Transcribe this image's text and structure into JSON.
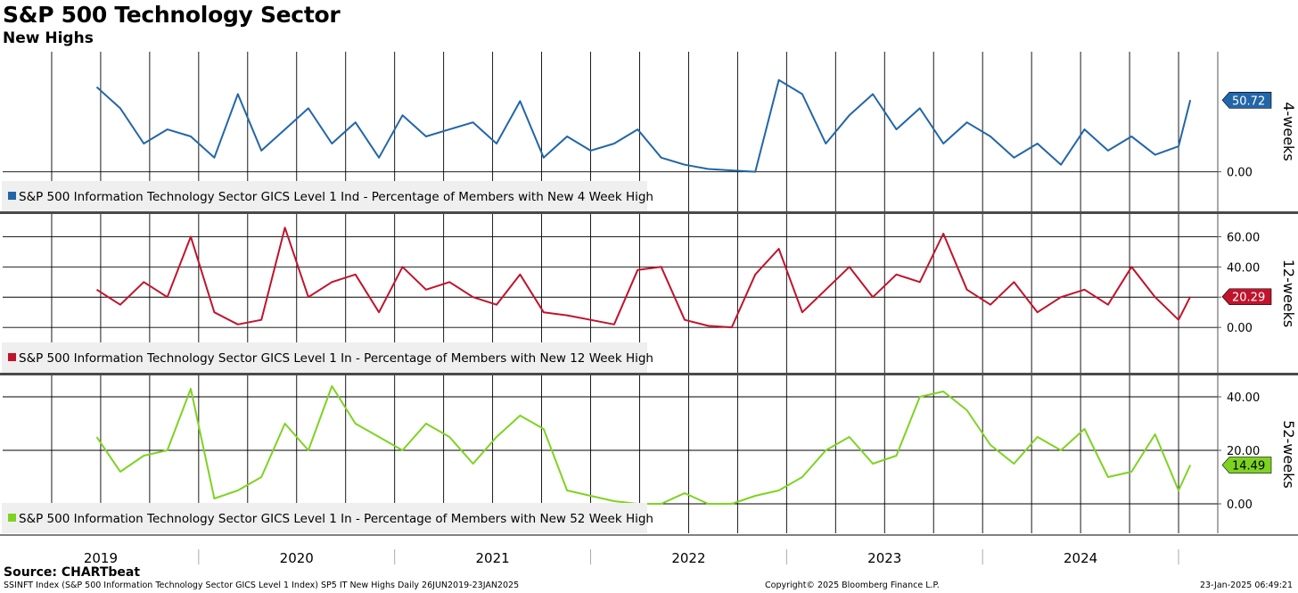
{
  "title": "S&P 500 Technology Sector",
  "subtitle": "New Highs",
  "source": "Source: CHARTbeat",
  "footer": {
    "left": "SSINFT Index (S&P 500 Information Technology Sector GICS Level 1 Index) SP5 IT New Highs  Daily 26JUN2019-23JAN2025",
    "center": "Copyright© 2025 Bloomberg Finance L.P.",
    "right": "23-Jan-2025 06:49:21"
  },
  "chart_data": [
    {
      "type": "line",
      "panel_label": "4-weeks",
      "color": "#2266a8",
      "legend": "S&P 500 Information Technology Sector GICS Level 1 Ind - Percentage of Members with New 4 Week High",
      "ylim": [
        -28,
        85
      ],
      "yticks": [
        0.0
      ],
      "ytick_labels": [
        "0.00"
      ],
      "last_value": 50.72,
      "last_value_label": "50.72",
      "x": [
        2019.48,
        2019.6,
        2019.72,
        2019.84,
        2019.96,
        2020.08,
        2020.2,
        2020.32,
        2020.44,
        2020.56,
        2020.68,
        2020.8,
        2020.92,
        2021.04,
        2021.16,
        2021.28,
        2021.4,
        2021.52,
        2021.64,
        2021.76,
        2021.88,
        2022.0,
        2022.12,
        2022.24,
        2022.36,
        2022.48,
        2022.6,
        2022.72,
        2022.84,
        2022.96,
        2023.08,
        2023.2,
        2023.32,
        2023.44,
        2023.56,
        2023.68,
        2023.8,
        2023.92,
        2024.04,
        2024.16,
        2024.28,
        2024.4,
        2024.52,
        2024.64,
        2024.76,
        2024.88,
        2025.0,
        2025.06
      ],
      "values": [
        60,
        45,
        20,
        30,
        25,
        10,
        55,
        15,
        30,
        45,
        20,
        35,
        10,
        40,
        25,
        30,
        35,
        20,
        50,
        10,
        25,
        15,
        20,
        30,
        10,
        5,
        2,
        1,
        0,
        65,
        55,
        20,
        40,
        55,
        30,
        45,
        20,
        35,
        25,
        10,
        20,
        5,
        30,
        15,
        25,
        12,
        18,
        50.72
      ]
    },
    {
      "type": "line",
      "panel_label": "12-weeks",
      "color": "#c0142c",
      "legend": "S&P 500 Information Technology Sector GICS Level 1 In - Percentage of Members with New 12 Week High",
      "ylim": [
        -30,
        75
      ],
      "yticks": [
        60.0,
        40.0,
        20.0,
        0.0
      ],
      "ytick_labels": [
        "60.00",
        "40.00",
        "",
        "0.00"
      ],
      "last_value": 20.29,
      "last_value_label": "20.29",
      "x": [
        2019.48,
        2019.6,
        2019.72,
        2019.84,
        2019.96,
        2020.08,
        2020.2,
        2020.32,
        2020.44,
        2020.56,
        2020.68,
        2020.8,
        2020.92,
        2021.04,
        2021.16,
        2021.28,
        2021.4,
        2021.52,
        2021.64,
        2021.76,
        2021.88,
        2022.0,
        2022.12,
        2022.24,
        2022.36,
        2022.48,
        2022.6,
        2022.72,
        2022.84,
        2022.96,
        2023.08,
        2023.2,
        2023.32,
        2023.44,
        2023.56,
        2023.68,
        2023.8,
        2023.92,
        2024.04,
        2024.16,
        2024.28,
        2024.4,
        2024.52,
        2024.64,
        2024.76,
        2024.88,
        2025.0,
        2025.06
      ],
      "values": [
        25,
        15,
        30,
        20,
        60,
        10,
        2,
        5,
        66,
        20,
        30,
        35,
        10,
        40,
        25,
        30,
        20,
        15,
        35,
        10,
        8,
        5,
        2,
        38,
        40,
        5,
        1,
        0,
        35,
        52,
        10,
        25,
        40,
        20,
        35,
        30,
        62,
        25,
        15,
        30,
        10,
        20,
        25,
        15,
        40,
        20,
        5,
        20.29
      ]
    },
    {
      "type": "line",
      "panel_label": "52-weeks",
      "color": "#7ed322",
      "legend": "S&P 500 Information Technology Sector GICS Level 1 In - Percentage of Members with New 52 Week High",
      "ylim": [
        -11,
        48
      ],
      "yticks": [
        40.0,
        20.0,
        0.0
      ],
      "ytick_labels": [
        "40.00",
        "20.00",
        "0.00"
      ],
      "last_value": 14.49,
      "last_value_label": "14.49",
      "x": [
        2019.48,
        2019.6,
        2019.72,
        2019.84,
        2019.96,
        2020.08,
        2020.2,
        2020.32,
        2020.44,
        2020.56,
        2020.68,
        2020.8,
        2020.92,
        2021.04,
        2021.16,
        2021.28,
        2021.4,
        2021.52,
        2021.64,
        2021.76,
        2021.88,
        2022.0,
        2022.12,
        2022.24,
        2022.36,
        2022.48,
        2022.6,
        2022.72,
        2022.84,
        2022.96,
        2023.08,
        2023.2,
        2023.32,
        2023.44,
        2023.56,
        2023.68,
        2023.8,
        2023.92,
        2024.04,
        2024.16,
        2024.28,
        2024.4,
        2024.52,
        2024.64,
        2024.76,
        2024.88,
        2025.0,
        2025.06
      ],
      "values": [
        25,
        12,
        18,
        20,
        43,
        2,
        5,
        10,
        30,
        20,
        44,
        30,
        25,
        20,
        30,
        25,
        15,
        25,
        33,
        28,
        5,
        3,
        1,
        0,
        0,
        4,
        0,
        0,
        3,
        5,
        10,
        20,
        25,
        15,
        18,
        40,
        42,
        35,
        22,
        15,
        25,
        20,
        28,
        10,
        12,
        26,
        5,
        14.49
      ]
    }
  ],
  "x_axis": {
    "domain": [
      2019.0,
      2025.2
    ],
    "year_labels": [
      "2019",
      "2020",
      "2021",
      "2022",
      "2023",
      "2024"
    ]
  }
}
